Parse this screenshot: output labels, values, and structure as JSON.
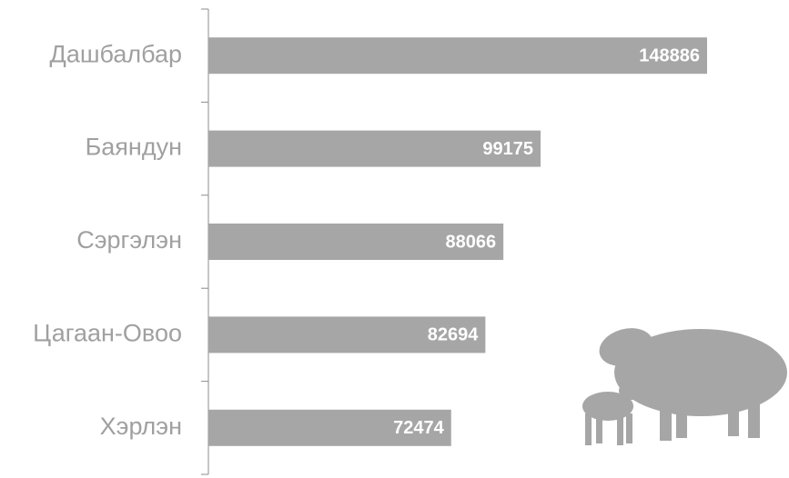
{
  "chart_data": {
    "type": "barh",
    "categories": [
      "Дашбалбар",
      "Баяндун",
      "Сэргэлэн",
      "Цагаан-Овоо",
      "Хэрлэн"
    ],
    "values": [
      148886,
      99175,
      88066,
      82694,
      72474
    ],
    "color": "#a6a6a6"
  }
}
